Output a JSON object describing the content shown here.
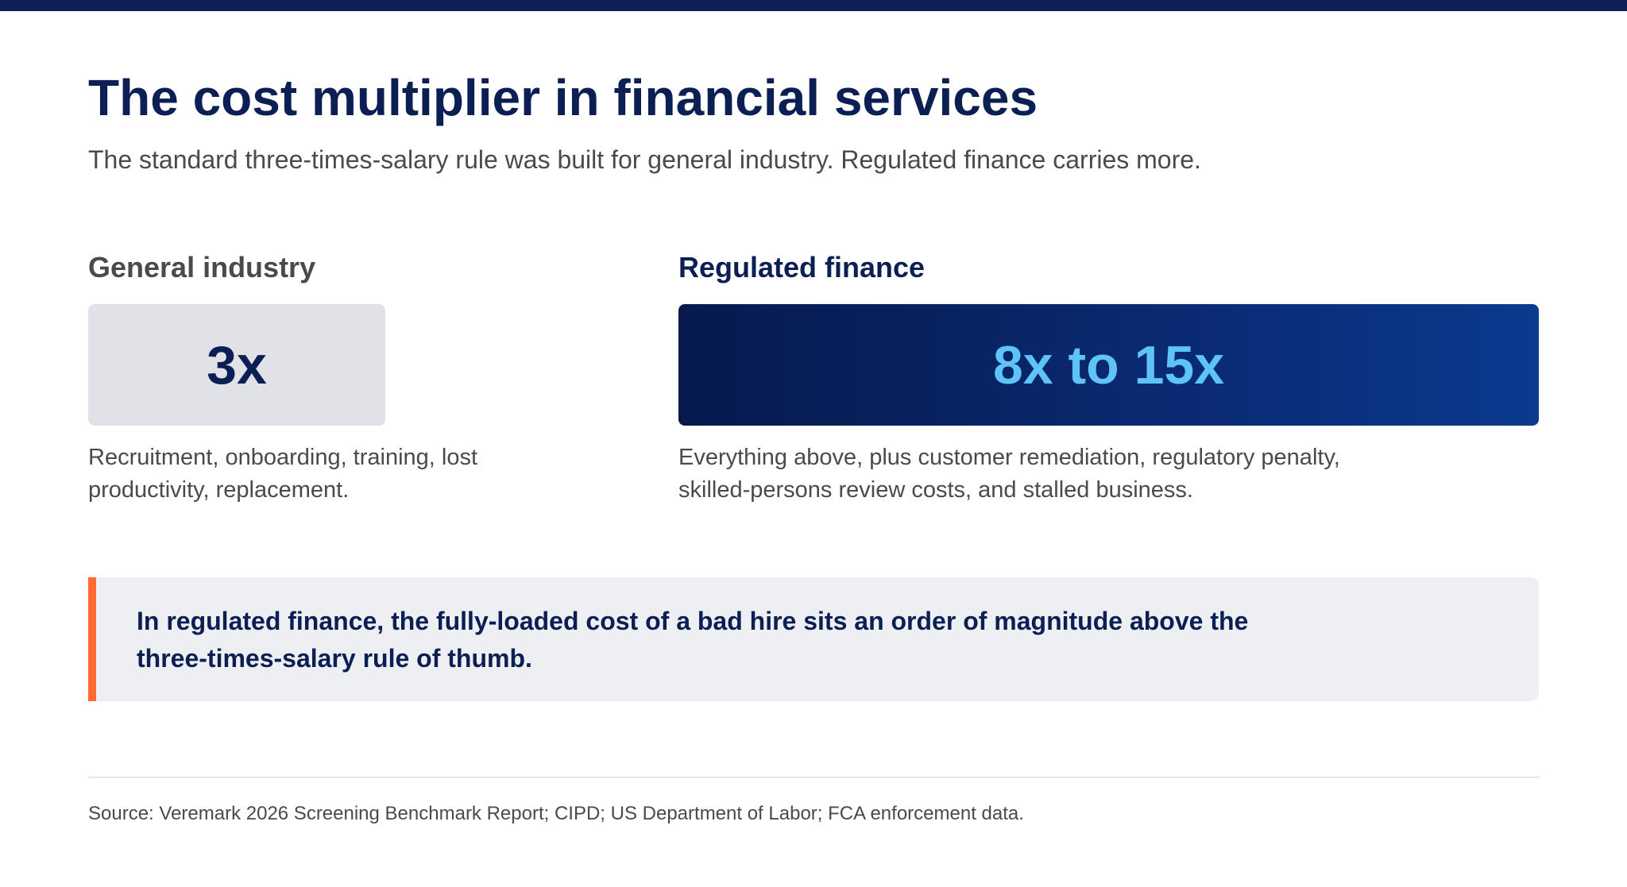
{
  "header": {
    "title": "The cost multiplier in financial services",
    "subtitle": "The standard three-times-salary rule was built for general industry. Regulated finance carries more."
  },
  "comparison": {
    "general": {
      "heading": "General industry",
      "value": "3x",
      "description": "Recruitment, onboarding, training, lost productivity, replacement."
    },
    "regulated": {
      "heading": "Regulated finance",
      "value": "8x to 15x",
      "description": "Everything above, plus customer remediation, regulatory penalty, skilled-persons review costs, and stalled business."
    }
  },
  "callout": {
    "text": "In regulated finance, the fully-loaded cost of a bad hire sits an order of magnitude above the three-times-salary rule of thumb."
  },
  "footer": {
    "source": "Source: Veremark 2026 Screening Benchmark Report; CIPD; US Department of Labor; FCA enforcement data."
  },
  "colors": {
    "brand_navy": "#0b1f55",
    "accent_light_blue": "#5ec4f7",
    "accent_orange": "#ff6a33",
    "panel_gray": "#e1e2e8",
    "callout_bg": "#eeeff3"
  }
}
